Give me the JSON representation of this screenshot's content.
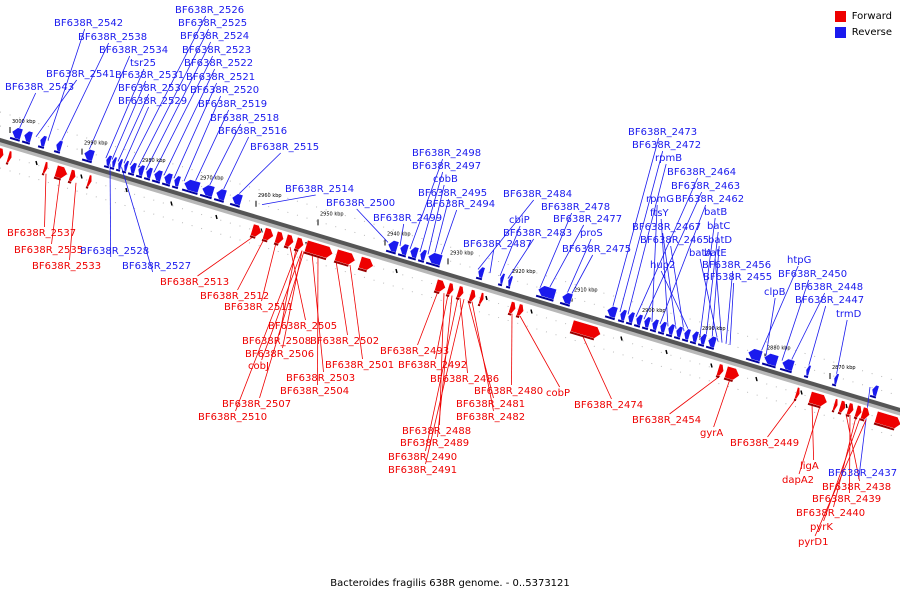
{
  "legend": [
    {
      "label": "Forward",
      "color": "#ee0000"
    },
    {
      "label": "Reverse",
      "color": "#1a1aee"
    }
  ],
  "caption": "Bacteroides fragilis 638R genome. - 0..5373121",
  "ticks": [
    "3000 kbp",
    "2990 kbp",
    "2980 kbp",
    "2970 kbp",
    "2960 kbp",
    "2950 kbp",
    "2940 kbp",
    "2930 kbp",
    "2920 kbp",
    "2910 kbp",
    "2900 kbp",
    "2890 kbp",
    "2880 kbp",
    "2870 kbp"
  ],
  "reverse_labels": [
    "BF638R_2542",
    "BF638R_2538",
    "BF638R_2534",
    "tsr25",
    "BF638R_2541",
    "BF638R_2543",
    "BF638R_2531",
    "BF638R_2530",
    "BF638R_2529",
    "BF638R_2526",
    "BF638R_2525",
    "BF638R_2524",
    "BF638R_2523",
    "BF638R_2522",
    "BF638R_2521",
    "BF638R_2520",
    "BF638R_2519",
    "BF638R_2518",
    "BF638R_2516",
    "BF638R_2515",
    "BF638R_2514",
    "BF638R_2500",
    "BF638R_2499",
    "BF638R_2498",
    "BF638R_2497",
    "cobB",
    "BF638R_2495",
    "BF638R_2494",
    "BF638R_2484",
    "cbiP",
    "BF638R_2483",
    "BF638R_2487",
    "BF638R_2478",
    "BF638R_2477",
    "proS",
    "BF638R_2475",
    "BF638R_2473",
    "BF638R_2472",
    "rpmB",
    "BF638R_2464",
    "BF638R_2463",
    "rpmG",
    "BF638R_2462",
    "ftsY",
    "batB",
    "BF638R_2467",
    "batC",
    "BF638R_2465",
    "batD",
    "hup2",
    "batA",
    "batE",
    "BF638R_2456",
    "BF638R_2455",
    "htpG",
    "BF638R_2450",
    "clpB",
    "BF638R_2448",
    "BF638R_2447",
    "trmD",
    "BF638R_2437",
    "BF638R_2528",
    "BF638R_2527"
  ],
  "forward_labels": [
    "BF638R_2537",
    "BF638R_2535",
    "BF638R_2533",
    "BF638R_2513",
    "BF638R_2512",
    "BF638R_2511",
    "BF638R_2505",
    "BF638R_2508",
    "BF638R_2506",
    "BF638R_2502",
    "BF638R_2501",
    "cobJ",
    "BF638R_2503",
    "BF638R_2504",
    "BF638R_2507",
    "BF638R_2510",
    "BF638R_2493",
    "BF638R_2492",
    "BF638R_2486",
    "BF638R_2480",
    "cobP",
    "BF638R_2481",
    "BF638R_2482",
    "BF638R_2488",
    "BF638R_2489",
    "BF638R_2490",
    "BF638R_2491",
    "BF638R_2474",
    "BF638R_2454",
    "gyrA",
    "BF638R_2449",
    "ligA",
    "dapA2",
    "BF638R_2438",
    "BF638R_2439",
    "BF638R_2440",
    "pyrK",
    "pyrD1"
  ]
}
